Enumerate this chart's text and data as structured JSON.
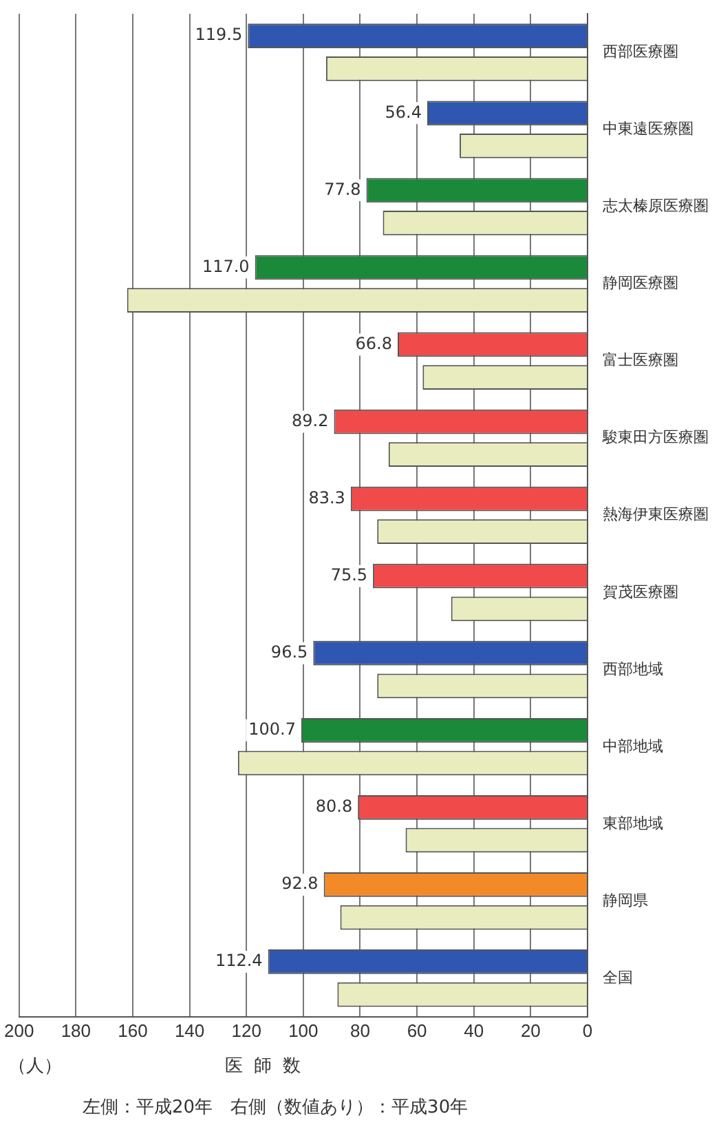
{
  "chart_data": {
    "type": "bar",
    "orientation": "horizontal",
    "xlabel": "医師数",
    "categories": [
      "西部医療圏",
      "中東遠医療圏",
      "志太榛原医療圏",
      "静岡医療圏",
      "富士医療圏",
      "駿東田方医療圏",
      "熱海伊東医療圏",
      "賀茂医療圏",
      "西部地域",
      "中部地域",
      "東部地域",
      "静岡県",
      "全国"
    ],
    "series": [
      {
        "colors": [
          "#2f56b0",
          "#2f56b0",
          "#1a8a3a",
          "#1a8a3a",
          "#f04a4a",
          "#f04a4a",
          "#f04a4a",
          "#f04a4a",
          "#2f56b0",
          "#1a8a3a",
          "#f04a4a",
          "#f28a28",
          "#2f56b0"
        ],
        "values": [
          119.5,
          56.4,
          77.8,
          117.0,
          66.8,
          89.2,
          83.3,
          75.5,
          96.5,
          100.7,
          80.8,
          92.8,
          112.4
        ],
        "value_labels": [
          "119.5",
          "56.4",
          "77.8",
          "117.0",
          "66.8",
          "89.2",
          "83.3",
          "75.5",
          "96.5",
          "100.7",
          "80.8",
          "92.8",
          "112.4"
        ]
      },
      {
        "color": "#e8ecbf",
        "values": [
          92,
          45,
          72,
          162,
          58,
          70,
          74,
          48,
          74,
          123,
          64,
          87,
          88
        ]
      }
    ],
    "xlim": [
      200,
      0
    ],
    "xticks": [
      200,
      180,
      160,
      140,
      120,
      100,
      80,
      60,
      40,
      20,
      0
    ],
    "grid": "x",
    "legend": false,
    "annotations": [
      "（人）",
      "左側：平成20年　右側（数値あり）：平成30年"
    ]
  }
}
